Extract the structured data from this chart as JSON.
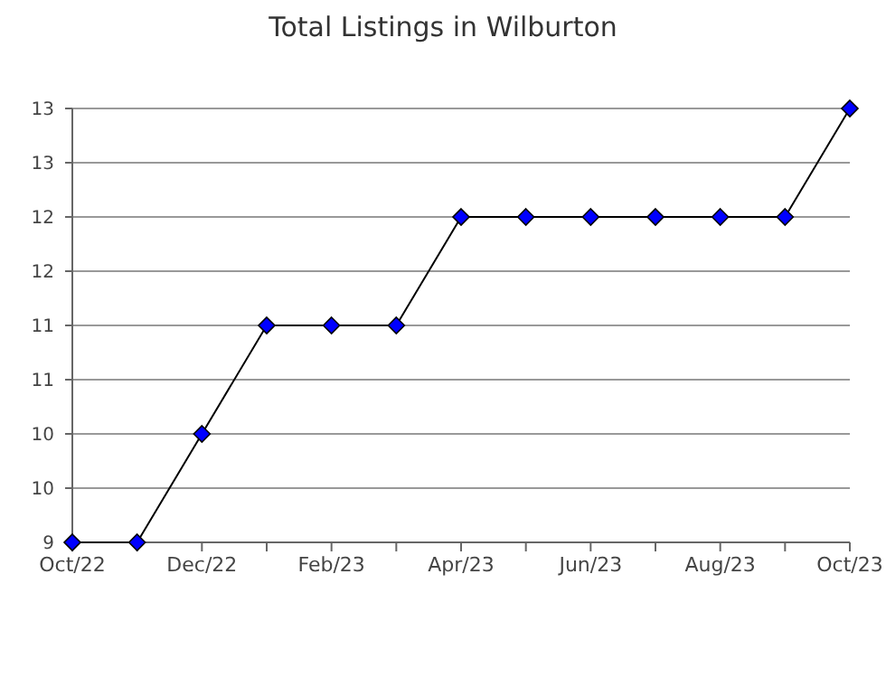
{
  "chart_data": {
    "type": "line",
    "title": "Total Listings in Wilburton",
    "categories": [
      "Oct/22",
      null,
      "Dec/22",
      null,
      "Feb/23",
      null,
      "Apr/23",
      null,
      "Jun/23",
      null,
      "Aug/23",
      null,
      "Oct/23"
    ],
    "series": [
      {
        "color": "#0000ff",
        "values": [
          9,
          9,
          10,
          11,
          11,
          11,
          12,
          12,
          12,
          12,
          12,
          12,
          13
        ]
      }
    ],
    "ylim": [
      9,
      13
    ],
    "yticks": [
      9,
      {
        "value": 9.5,
        "label": "10"
      },
      10,
      {
        "value": 10.5,
        "label": "11"
      },
      11,
      {
        "value": 11.5,
        "label": "12"
      },
      12,
      {
        "value": 12.5,
        "label": "13"
      },
      13
    ],
    "grid": "y",
    "marker": "diamond",
    "line_style": "solid"
  }
}
